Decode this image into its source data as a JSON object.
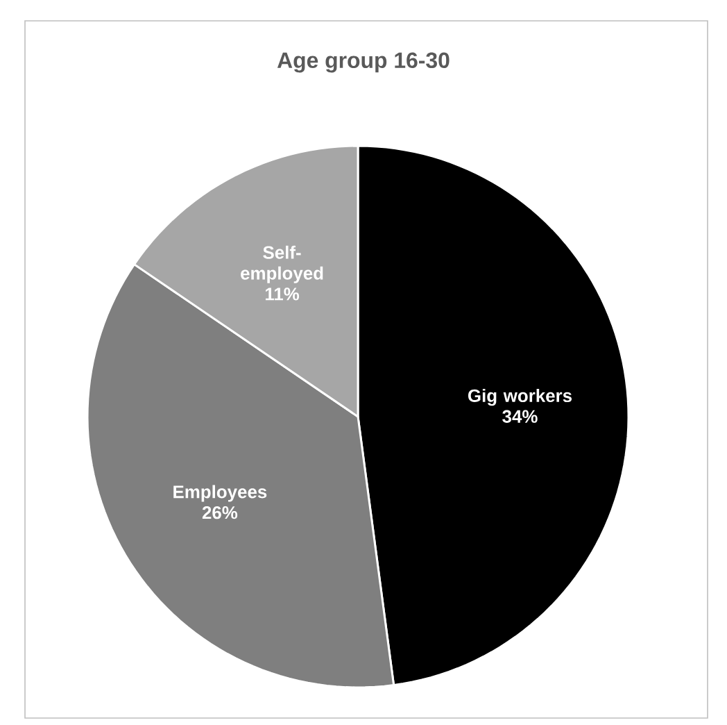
{
  "chart_data": {
    "type": "pie",
    "title": "Age group 16-30",
    "categories": [
      "Gig workers",
      "Employees",
      "Self-employed"
    ],
    "values": [
      34,
      26,
      11
    ],
    "colors": [
      "#000000",
      "#7f7f7f",
      "#a6a6a6"
    ],
    "value_labels": [
      "34%",
      "26%",
      "11%"
    ]
  }
}
